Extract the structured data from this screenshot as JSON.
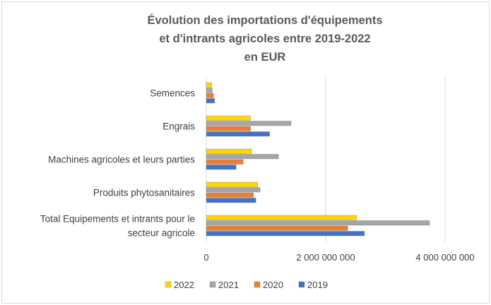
{
  "chart_data": {
    "type": "bar",
    "orientation": "horizontal",
    "title": [
      "Évolution des importations d'équipements",
      "et d'intrants agricoles entre 2019-2022",
      "en EUR"
    ],
    "xlabel": "",
    "ylabel": "",
    "xlim": [
      0,
      4000000000
    ],
    "x_ticks": [
      0,
      2000000000,
      4000000000
    ],
    "x_tick_labels": [
      "0",
      "2 000 000 000",
      "4 000 000 000"
    ],
    "grid": true,
    "legend_position": "bottom",
    "categories": [
      [
        "Semences"
      ],
      [
        "Engrais"
      ],
      [
        "Machines agricoles et leurs parties"
      ],
      [
        "Produits phytosanitaires"
      ],
      [
        "Total Equipements et intrants pour le",
        "secteur agricole"
      ]
    ],
    "series": [
      {
        "name": "2022",
        "color": "#ffd700",
        "values": [
          90000000,
          740000000,
          760000000,
          860000000,
          2520000000
        ]
      },
      {
        "name": "2021",
        "color": "#a6a6a6",
        "values": [
          100000000,
          1420000000,
          1210000000,
          900000000,
          3740000000
        ]
      },
      {
        "name": "2020",
        "color": "#ed7d31",
        "values": [
          120000000,
          740000000,
          620000000,
          790000000,
          2370000000
        ]
      },
      {
        "name": "2019",
        "color": "#4472c4",
        "values": [
          140000000,
          1060000000,
          500000000,
          830000000,
          2650000000
        ]
      }
    ],
    "legend_order": [
      "2022",
      "2021",
      "2020",
      "2019"
    ]
  }
}
